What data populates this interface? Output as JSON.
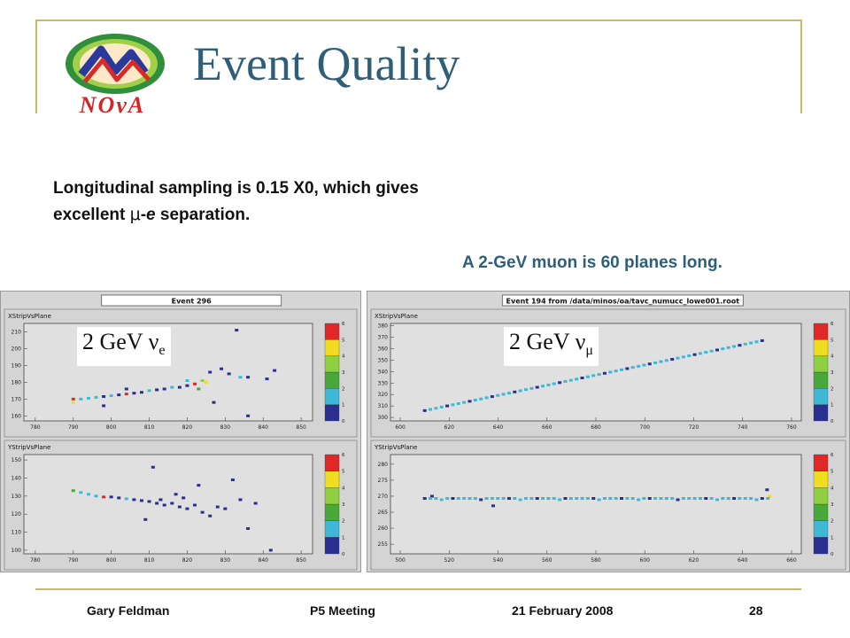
{
  "slide": {
    "title": "Event Quality",
    "body_line1": "Longitudinal sampling is 0.15 X0, which gives",
    "body_line2_prefix": "excellent ",
    "body_line2_mu": "μ",
    "body_line2_mid": "-",
    "body_line2_e": "e",
    "body_line2_suffix": " separation.",
    "muon_note": "A 2-GeV muon is 60 planes long.",
    "logo_text": "NOvA"
  },
  "footer": {
    "author": "Gary Feldman",
    "meeting": "P5 Meeting",
    "date": "21 February 2008",
    "page": "28"
  },
  "colors": {
    "title": "#2e5e78",
    "frame": "#c8b96a",
    "muon_note": "#2d5f7a",
    "plot_bg": "#e0e0e0"
  },
  "palette": [
    "#2a2f8f",
    "#3fb8d8",
    "#48a838",
    "#8ed040",
    "#f0dd20",
    "#e02828"
  ],
  "left_panel": {
    "event_title": "Event 296",
    "badge_main": "2 GeV ν",
    "badge_sub": "e",
    "plots": [
      {
        "label": "XStripVsPlane",
        "x_ticks": [
          "780",
          "790",
          "800",
          "810",
          "820",
          "830",
          "840",
          "850"
        ],
        "y_ticks": [
          "210",
          "200",
          "190",
          "180",
          "170",
          "160"
        ],
        "x_range": [
          777,
          853
        ],
        "y_range": [
          157,
          215
        ],
        "scale_labels": [
          "0",
          "1",
          "2",
          "3",
          "4",
          "5",
          "6"
        ],
        "points": [
          {
            "x": 790,
            "y": 168,
            "c": 4
          },
          {
            "x": 790,
            "y": 170,
            "c": 5
          },
          {
            "x": 792,
            "y": 170,
            "c": 1
          },
          {
            "x": 794,
            "y": 170.5,
            "c": 1
          },
          {
            "x": 796,
            "y": 171,
            "c": 1
          },
          {
            "x": 798,
            "y": 171.5,
            "c": 0
          },
          {
            "x": 800,
            "y": 172,
            "c": 1
          },
          {
            "x": 802,
            "y": 172.5,
            "c": 0
          },
          {
            "x": 804,
            "y": 173,
            "c": 5
          },
          {
            "x": 806,
            "y": 173.5,
            "c": 0
          },
          {
            "x": 808,
            "y": 174,
            "c": 0
          },
          {
            "x": 810,
            "y": 175,
            "c": 1
          },
          {
            "x": 812,
            "y": 175.5,
            "c": 0
          },
          {
            "x": 814,
            "y": 176,
            "c": 0
          },
          {
            "x": 816,
            "y": 177,
            "c": 1
          },
          {
            "x": 818,
            "y": 177,
            "c": 0
          },
          {
            "x": 820,
            "y": 178,
            "c": 0
          },
          {
            "x": 820,
            "y": 181,
            "c": 1
          },
          {
            "x": 822,
            "y": 179,
            "c": 5
          },
          {
            "x": 823,
            "y": 176,
            "c": 2
          },
          {
            "x": 824,
            "y": 181,
            "c": 3
          },
          {
            "x": 825,
            "y": 180,
            "c": 4
          },
          {
            "x": 826,
            "y": 186,
            "c": 0
          },
          {
            "x": 827,
            "y": 168,
            "c": 0
          },
          {
            "x": 829,
            "y": 188,
            "c": 0
          },
          {
            "x": 831,
            "y": 185,
            "c": 0
          },
          {
            "x": 833,
            "y": 211,
            "c": 0
          },
          {
            "x": 834,
            "y": 183,
            "c": 1
          },
          {
            "x": 836,
            "y": 183,
            "c": 0
          },
          {
            "x": 836,
            "y": 160,
            "c": 0
          },
          {
            "x": 841,
            "y": 182,
            "c": 0
          },
          {
            "x": 843,
            "y": 187,
            "c": 0
          },
          {
            "x": 798,
            "y": 166,
            "c": 0
          },
          {
            "x": 804,
            "y": 176,
            "c": 0
          }
        ]
      },
      {
        "label": "YStripVsPlane",
        "x_ticks": [
          "780",
          "790",
          "800",
          "810",
          "820",
          "830",
          "840",
          "850"
        ],
        "y_ticks": [
          "150",
          "140",
          "130",
          "120",
          "110",
          "100"
        ],
        "x_range": [
          777,
          853
        ],
        "y_range": [
          98,
          153
        ],
        "scale_labels": [
          "0",
          "1",
          "2",
          "3",
          "4",
          "5",
          "6"
        ],
        "points": [
          {
            "x": 790,
            "y": 133,
            "c": 2
          },
          {
            "x": 792,
            "y": 132,
            "c": 1
          },
          {
            "x": 794,
            "y": 131,
            "c": 1
          },
          {
            "x": 796,
            "y": 130,
            "c": 1
          },
          {
            "x": 798,
            "y": 129.5,
            "c": 5
          },
          {
            "x": 800,
            "y": 129.5,
            "c": 0
          },
          {
            "x": 802,
            "y": 129,
            "c": 0
          },
          {
            "x": 804,
            "y": 128.5,
            "c": 1
          },
          {
            "x": 806,
            "y": 128,
            "c": 0
          },
          {
            "x": 808,
            "y": 127.5,
            "c": 0
          },
          {
            "x": 810,
            "y": 127,
            "c": 0
          },
          {
            "x": 811,
            "y": 146,
            "c": 0
          },
          {
            "x": 812,
            "y": 126,
            "c": 0
          },
          {
            "x": 813,
            "y": 128,
            "c": 0
          },
          {
            "x": 814,
            "y": 125,
            "c": 0
          },
          {
            "x": 816,
            "y": 126,
            "c": 0
          },
          {
            "x": 817,
            "y": 131,
            "c": 0
          },
          {
            "x": 818,
            "y": 124,
            "c": 0
          },
          {
            "x": 819,
            "y": 129,
            "c": 0
          },
          {
            "x": 820,
            "y": 123,
            "c": 0
          },
          {
            "x": 822,
            "y": 125,
            "c": 0
          },
          {
            "x": 823,
            "y": 136,
            "c": 0
          },
          {
            "x": 824,
            "y": 121,
            "c": 0
          },
          {
            "x": 826,
            "y": 119,
            "c": 0
          },
          {
            "x": 828,
            "y": 124,
            "c": 0
          },
          {
            "x": 830,
            "y": 123,
            "c": 0
          },
          {
            "x": 832,
            "y": 139,
            "c": 0
          },
          {
            "x": 834,
            "y": 128,
            "c": 0
          },
          {
            "x": 836,
            "y": 112,
            "c": 0
          },
          {
            "x": 838,
            "y": 126,
            "c": 0
          },
          {
            "x": 842,
            "y": 100,
            "c": 0
          },
          {
            "x": 809,
            "y": 117,
            "c": 0
          }
        ]
      }
    ]
  },
  "right_panel": {
    "event_title": "Event 194 from /data/minos/oa/tavc_numucc_lowe001.root",
    "badge_main": "2 GeV ν",
    "badge_sub": "μ",
    "plots": [
      {
        "label": "XStripVsPlane",
        "x_ticks": [
          "600",
          "620",
          "640",
          "660",
          "680",
          "700",
          "720",
          "740",
          "760"
        ],
        "y_ticks": [
          "380",
          "370",
          "360",
          "350",
          "340",
          "330",
          "320",
          "310",
          "300"
        ],
        "x_range": [
          596,
          764
        ],
        "y_range": [
          297,
          382
        ],
        "scale_labels": [
          "0",
          "1",
          "2",
          "3",
          "4",
          "5",
          "6"
        ],
        "line": {
          "x0": 610,
          "y0": 306,
          "x1": 748,
          "y1": 367,
          "step": 2.3
        },
        "points": []
      },
      {
        "label": "YStripVsPlane",
        "x_ticks": [
          "500",
          "520",
          "540",
          "560",
          "580",
          "600",
          "620",
          "640",
          "660"
        ],
        "y_ticks": [
          "280",
          "275",
          "270",
          "265",
          "260",
          "255"
        ],
        "x_range": [
          496,
          664
        ],
        "y_range": [
          252,
          283
        ],
        "scale_labels": [
          "0",
          "1",
          "2",
          "3",
          "4",
          "5",
          "6"
        ],
        "flat": {
          "x0": 510,
          "x1": 652,
          "y": 269.3,
          "step": 2.3
        },
        "points": [
          {
            "x": 513,
            "y": 270,
            "c": 0
          },
          {
            "x": 538,
            "y": 267,
            "c": 0
          },
          {
            "x": 650,
            "y": 272,
            "c": 0
          },
          {
            "x": 651,
            "y": 270,
            "c": 4
          }
        ]
      }
    ]
  }
}
